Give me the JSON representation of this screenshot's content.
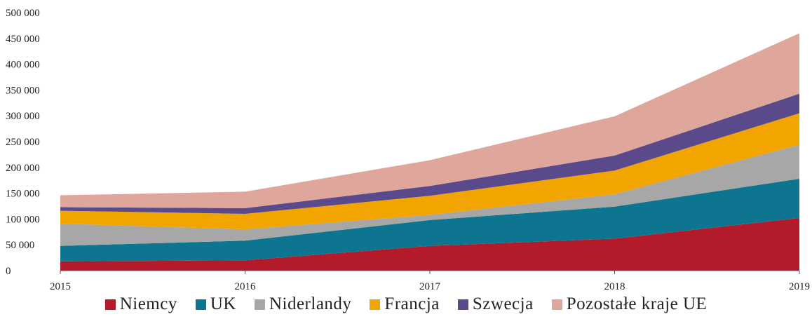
{
  "chart_data": {
    "type": "area",
    "stacked": true,
    "title": "",
    "xlabel": "",
    "ylabel": "",
    "x": [
      "2015",
      "2016",
      "2017",
      "2018",
      "2019"
    ],
    "ylim": [
      0,
      500000
    ],
    "yticks": [
      0,
      50000,
      100000,
      150000,
      200000,
      250000,
      300000,
      350000,
      400000,
      450000,
      500000
    ],
    "ytick_labels": [
      "0",
      "50 000",
      "100 000",
      "150 000",
      "200 000",
      "250 000",
      "300 000",
      "350 000",
      "400 000",
      "450 000",
      "500 000"
    ],
    "grid": false,
    "legend_position": "bottom",
    "series": [
      {
        "name": "Niemcy",
        "color": "#b31b2a",
        "values": [
          18000,
          20000,
          48000,
          62000,
          102000
        ]
      },
      {
        "name": "UK",
        "color": "#0d7590",
        "values": [
          30000,
          38000,
          50000,
          62000,
          76000
        ]
      },
      {
        "name": "Niderlandy",
        "color": "#a7a7a7",
        "values": [
          43000,
          22000,
          10000,
          24000,
          66000
        ]
      },
      {
        "name": "Francja",
        "color": "#f2a500",
        "values": [
          25000,
          30000,
          37000,
          46000,
          61000
        ]
      },
      {
        "name": "Szwecja",
        "color": "#5a4a8b",
        "values": [
          7000,
          11000,
          19000,
          29000,
          38000
        ]
      },
      {
        "name": "Pozostałe kraje UE",
        "color": "#dfa79b",
        "values": [
          23000,
          32000,
          50000,
          76000,
          117000
        ]
      }
    ]
  }
}
